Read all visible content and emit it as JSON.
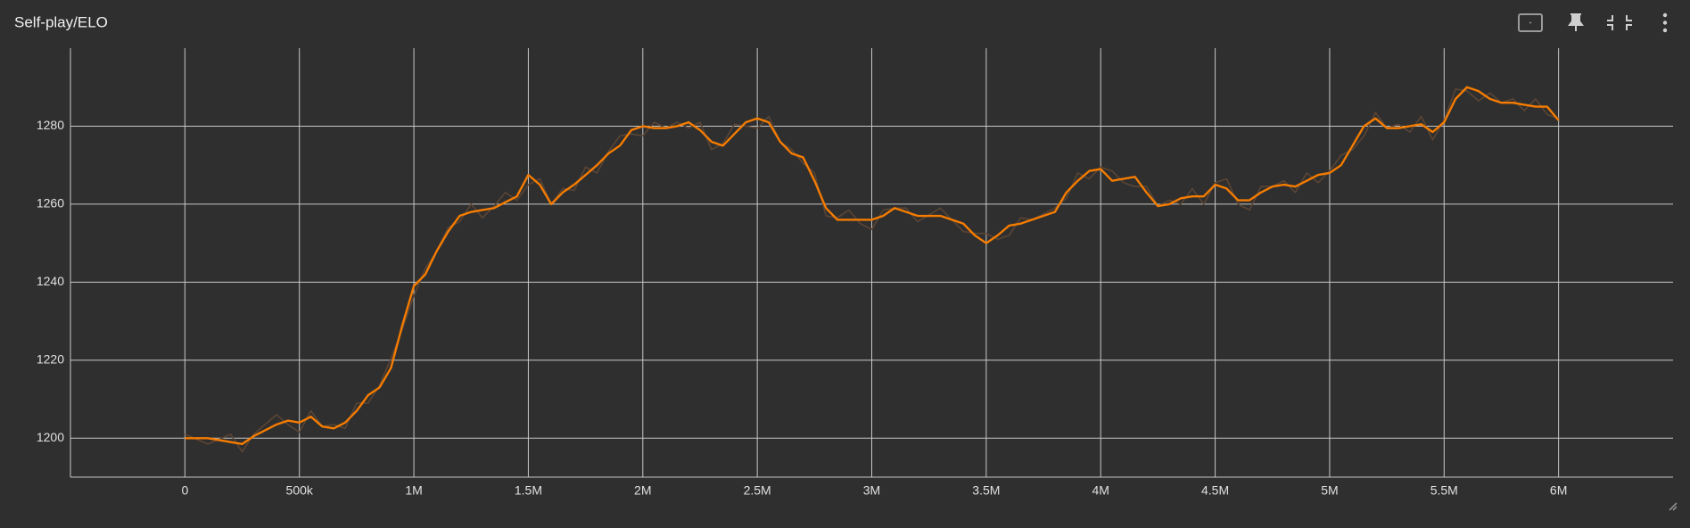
{
  "chart_data": {
    "type": "line",
    "title": "Self-play/ELO",
    "x": [
      0,
      100000,
      200000,
      250000,
      300000,
      400000,
      450000,
      500000,
      550000,
      600000,
      650000,
      700000,
      750000,
      800000,
      850000,
      900000,
      950000,
      1000000,
      1050000,
      1100000,
      1150000,
      1200000,
      1250000,
      1300000,
      1350000,
      1400000,
      1450000,
      1500000,
      1550000,
      1600000,
      1650000,
      1700000,
      1750000,
      1800000,
      1850000,
      1900000,
      1950000,
      2000000,
      2050000,
      2100000,
      2150000,
      2200000,
      2250000,
      2300000,
      2350000,
      2400000,
      2450000,
      2500000,
      2550000,
      2600000,
      2650000,
      2700000,
      2750000,
      2800000,
      2850000,
      2900000,
      2950000,
      3000000,
      3050000,
      3100000,
      3150000,
      3200000,
      3300000,
      3400000,
      3450000,
      3500000,
      3550000,
      3600000,
      3650000,
      3700000,
      3800000,
      3850000,
      3900000,
      3950000,
      4000000,
      4050000,
      4100000,
      4150000,
      4200000,
      4250000,
      4300000,
      4350000,
      4400000,
      4450000,
      4500000,
      4550000,
      4600000,
      4650000,
      4700000,
      4750000,
      4800000,
      4850000,
      4900000,
      4950000,
      5000000,
      5050000,
      5100000,
      5150000,
      5200000,
      5250000,
      5300000,
      5350000,
      5400000,
      5450000,
      5500000,
      5550000,
      5600000,
      5650000,
      5700000,
      5750000,
      5800000,
      5850000,
      5900000,
      5950000,
      6000000
    ],
    "series": [
      {
        "color": "#5b4535",
        "values": [
          1201,
          1198.5,
          1201,
          1196.5,
          1201,
          1206,
          1203.5,
          1201.5,
          1207,
          1203,
          1203.5,
          1202.5,
          1209,
          1209,
          1213.5,
          1220.5,
          1228,
          1236.5,
          1243.5,
          1248,
          1254,
          1255.5,
          1260,
          1256.5,
          1259.5,
          1263,
          1261,
          1265,
          1266.5,
          1260,
          1264,
          1263.5,
          1269.5,
          1268,
          1273.5,
          1277.5,
          1278,
          1277.5,
          1281,
          1279.5,
          1281,
          1279.5,
          1281,
          1274,
          1275.5,
          1280.5,
          1280,
          1279.5,
          1282.5,
          1276,
          1274,
          1270.5,
          1268,
          1257,
          1256.5,
          1258.5,
          1255,
          1253.5,
          1258.5,
          1259,
          1259,
          1255.5,
          1259,
          1253,
          1252.5,
          1252.5,
          1251,
          1252,
          1256.5,
          1256,
          1259,
          1261.5,
          1268,
          1266.5,
          1269.5,
          1268.5,
          1265.5,
          1264.5,
          1264.5,
          1259.5,
          1261,
          1260,
          1264,
          1260,
          1265.5,
          1266.5,
          1260,
          1258.5,
          1264.5,
          1264.5,
          1266,
          1263,
          1268,
          1265.5,
          1268.5,
          1272.5,
          1274,
          1277.5,
          1283.5,
          1279.5,
          1280.5,
          1278.5,
          1282.5,
          1276.5,
          1281.5,
          1289.5,
          1289,
          1286.5,
          1288.5,
          1286,
          1287,
          1284,
          1287,
          1283,
          1282
        ]
      },
      {
        "color": "#f57c00",
        "values": [
          1200,
          1200,
          1199,
          1198.5,
          1200.5,
          1203.5,
          1204.5,
          1204,
          1205.5,
          1203,
          1202.5,
          1204,
          1207,
          1211,
          1213,
          1218,
          1229,
          1239,
          1242,
          1248,
          1253,
          1257,
          1258,
          1258.5,
          1259,
          1260.5,
          1262,
          1267.5,
          1265,
          1260,
          1263,
          1265,
          1267.5,
          1270,
          1273,
          1275,
          1279,
          1280,
          1279.5,
          1279.5,
          1280,
          1281,
          1279,
          1276,
          1275,
          1278,
          1281,
          1282,
          1281,
          1276,
          1273,
          1272,
          1266,
          1259,
          1256,
          1256,
          1256,
          1256,
          1257,
          1259,
          1258,
          1257,
          1257,
          1255,
          1252,
          1250,
          1252,
          1254.5,
          1255,
          1256,
          1258,
          1263,
          1266,
          1268.5,
          1269,
          1266,
          1266.5,
          1267,
          1263,
          1259.5,
          1260,
          1261.5,
          1262,
          1262,
          1265,
          1264,
          1261,
          1261,
          1263,
          1264.5,
          1265,
          1264.5,
          1266,
          1267.5,
          1268,
          1270,
          1275,
          1280,
          1282,
          1279.5,
          1279.5,
          1280,
          1280.5,
          1278.5,
          1281,
          1287,
          1290,
          1289,
          1287,
          1286,
          1286,
          1285.5,
          1285,
          1285,
          1281.5
        ]
      }
    ],
    "xlim": [
      -500000,
      6500000
    ],
    "ylim": [
      1190,
      1300
    ],
    "xticks": [
      0,
      {
        "value": 500000,
        "label": "500k"
      },
      {
        "value": 1000000,
        "label": "1M"
      },
      {
        "value": 1500000,
        "label": "1.5M"
      },
      {
        "value": 2000000,
        "label": "2M"
      },
      {
        "value": 2500000,
        "label": "2.5M"
      },
      {
        "value": 3000000,
        "label": "3M"
      },
      {
        "value": 3500000,
        "label": "3.5M"
      },
      {
        "value": 4000000,
        "label": "4M"
      },
      {
        "value": 4500000,
        "label": "4.5M"
      },
      {
        "value": 5000000,
        "label": "5M"
      },
      {
        "value": 5500000,
        "label": "5.5M"
      },
      {
        "value": 6000000,
        "label": "6M"
      }
    ],
    "yticks": [
      1200,
      1220,
      1240,
      1260,
      1280
    ],
    "grid": true
  }
}
